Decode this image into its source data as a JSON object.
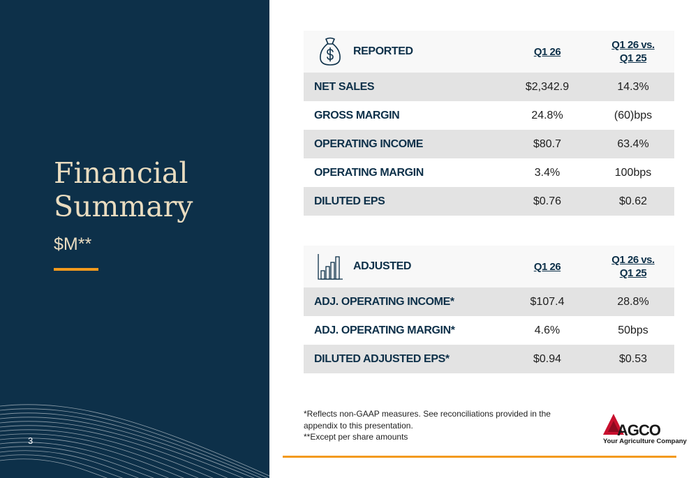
{
  "left": {
    "title_line1": "Financial",
    "title_line2": "Summary",
    "subtitle": "$M**",
    "page_number": "3"
  },
  "reported": {
    "icon": "money-bag-icon",
    "header": {
      "label": "REPORTED",
      "col_q": "Q1 26",
      "col_chg_line1": "Q1 26 vs.",
      "col_chg_line2": "Q1 25"
    },
    "rows": [
      {
        "label": "NET SALES",
        "q": "$2,342.9",
        "chg": "14.3%"
      },
      {
        "label": "GROSS MARGIN",
        "q": "24.8%",
        "chg": "(60)bps"
      },
      {
        "label": "OPERATING INCOME",
        "q": "$80.7",
        "chg": "63.4%"
      },
      {
        "label": "OPERATING MARGIN",
        "q": "3.4%",
        "chg": "100bps"
      },
      {
        "label": "DILUTED EPS",
        "q": "$0.76",
        "chg": "$0.62"
      }
    ]
  },
  "adjusted": {
    "icon": "bar-chart-icon",
    "header": {
      "label": "ADJUSTED",
      "col_q": "Q1 26",
      "col_chg_line1": "Q1 26 vs.",
      "col_chg_line2": "Q1 25"
    },
    "rows": [
      {
        "label": "ADJ. OPERATING INCOME*",
        "q": "$107.4",
        "chg": "28.8%"
      },
      {
        "label": "ADJ. OPERATING MARGIN*",
        "q": "4.6%",
        "chg": "50bps"
      },
      {
        "label": "DILUTED ADJUSTED EPS*",
        "q": "$0.94",
        "chg": "$0.53"
      }
    ]
  },
  "footnotes": {
    "line1": "*Reflects non-GAAP measures. See reconciliations provided in the appendix to this presentation.",
    "line2": "**Except per share amounts"
  },
  "logo": {
    "name": "AGCO",
    "tagline": "Your Agriculture Company"
  },
  "colors": {
    "navy": "#0d3049",
    "cream": "#e9dcc0",
    "orange": "#f39a1e",
    "logo_red": "#c8102e"
  }
}
